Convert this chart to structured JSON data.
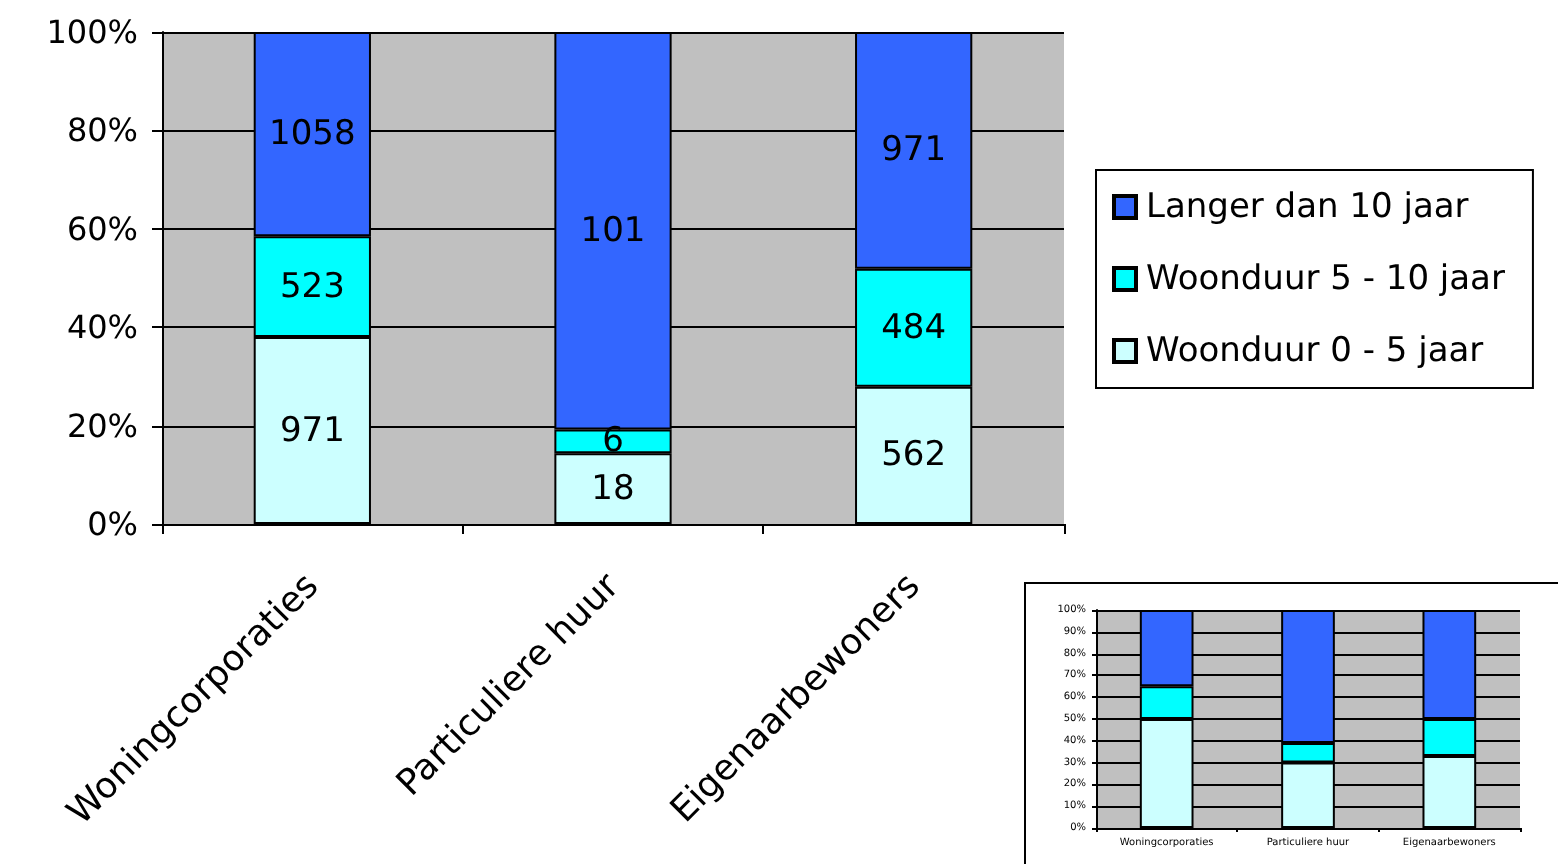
{
  "chart_data": [
    {
      "type": "bar",
      "stacked": true,
      "categories": [
        "Woningcorporaties",
        "Particuliere huur",
        "Eigenaarbewoners"
      ],
      "series": [
        {
          "name": "Woonduur 0 - 5 jaar",
          "color": "#ccffff",
          "values": [
            38.0,
            14.4,
            27.9
          ]
        },
        {
          "name": "Woonduur 5 - 10 jaar",
          "color": "#00ffff",
          "values": [
            20.5,
            4.8,
            24.0
          ]
        },
        {
          "name": "Langer dan 10 jaar",
          "color": "#3366ff",
          "values": [
            41.5,
            80.8,
            48.1
          ]
        }
      ],
      "ylim": [
        0,
        100
      ],
      "yticks": [
        {
          "value": 0,
          "label": "0%"
        },
        {
          "value": 20,
          "label": "20%"
        },
        {
          "value": 40,
          "label": "40%"
        },
        {
          "value": 60,
          "label": "60%"
        },
        {
          "value": 80,
          "label": "80%"
        },
        {
          "value": 100,
          "label": "100%"
        }
      ],
      "annotations": [
        "971",
        "523",
        "1058",
        "18",
        "6",
        "101",
        "562",
        "484",
        "971"
      ],
      "grid": "y",
      "legend": "right"
    },
    {
      "type": "bar",
      "stacked": true,
      "categories": [
        "Woningcorporaties",
        "Particuliere huur",
        "Eigenaarbewoners"
      ],
      "series": [
        {
          "color": "#ccffff",
          "values": [
            50,
            30,
            33
          ]
        },
        {
          "color": "#00ffff",
          "values": [
            15,
            9,
            17
          ]
        },
        {
          "color": "#3366ff",
          "values": [
            35,
            61,
            50
          ]
        }
      ],
      "ylim": [
        0,
        100
      ],
      "yticks": [
        {
          "value": 0,
          "label": "0%"
        },
        {
          "value": 10,
          "label": "10%"
        },
        {
          "value": 20,
          "label": "20%"
        },
        {
          "value": 30,
          "label": "30%"
        },
        {
          "value": 40,
          "label": "40%"
        },
        {
          "value": 50,
          "label": "50%"
        },
        {
          "value": 60,
          "label": "60%"
        },
        {
          "value": 70,
          "label": "70%"
        },
        {
          "value": 80,
          "label": "80%"
        },
        {
          "value": 90,
          "label": "90%"
        },
        {
          "value": 100,
          "label": "100%"
        }
      ],
      "grid": "y"
    }
  ]
}
